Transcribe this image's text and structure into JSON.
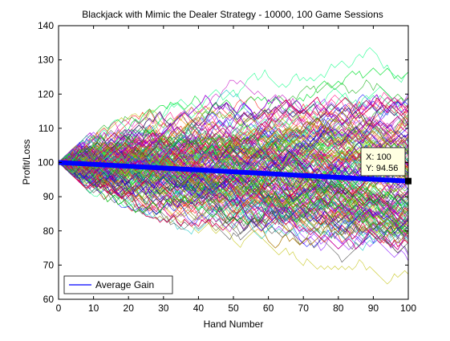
{
  "chart_data": {
    "type": "line",
    "title": "Blackjack with Mimic the Dealer Strategy - 10000, 100 Game Sessions",
    "xlabel": "Hand Number",
    "ylabel": "Profit/Loss",
    "xlim": [
      0,
      100
    ],
    "ylim": [
      60,
      140
    ],
    "xticks": [
      0,
      10,
      20,
      30,
      40,
      50,
      60,
      70,
      80,
      90,
      100
    ],
    "yticks": [
      60,
      70,
      80,
      90,
      100,
      110,
      120,
      130,
      140
    ],
    "grid": false,
    "legend": {
      "placement": "bottom-left",
      "entries": [
        "Average Gain"
      ]
    },
    "sessions": {
      "count": 10000,
      "hands_per_session": 100,
      "start_value": 100,
      "note": "random-walk profit/loss curves, one per session, multicolored",
      "upper_envelope": [
        [
          0,
          100
        ],
        [
          10,
          110
        ],
        [
          20,
          114
        ],
        [
          30,
          117
        ],
        [
          40,
          121
        ],
        [
          50,
          125
        ],
        [
          60,
          130
        ],
        [
          70,
          132
        ],
        [
          80,
          133
        ],
        [
          90,
          134
        ],
        [
          100,
          132
        ]
      ],
      "lower_envelope": [
        [
          0,
          100
        ],
        [
          10,
          90
        ],
        [
          20,
          86
        ],
        [
          30,
          82
        ],
        [
          40,
          78
        ],
        [
          50,
          74
        ],
        [
          60,
          70
        ],
        [
          70,
          66
        ],
        [
          80,
          63
        ],
        [
          90,
          61
        ],
        [
          100,
          60
        ]
      ]
    },
    "series": [
      {
        "name": "Average Gain",
        "color": "#0000ff",
        "x": [
          0,
          100
        ],
        "y": [
          100,
          94.56
        ]
      }
    ],
    "datatip": {
      "x_label": "X: 100",
      "y_label": "Y: 94.56",
      "x": 100,
      "y": 94.56
    }
  }
}
